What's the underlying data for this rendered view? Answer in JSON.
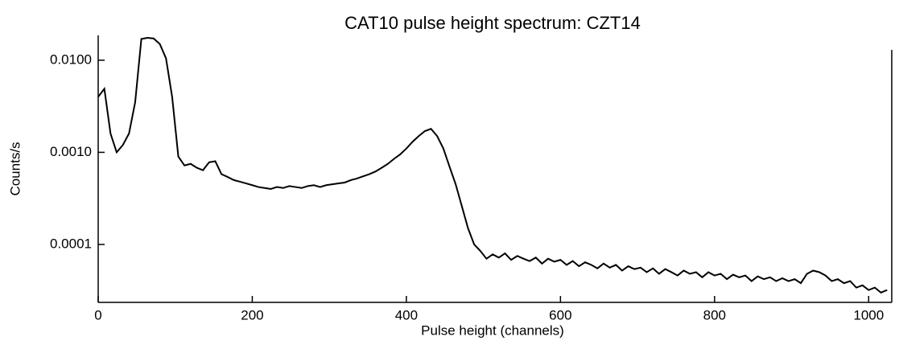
{
  "chart_data": {
    "type": "line",
    "title": "CAT10 pulse height spectrum: CZT14",
    "xlabel": "Pulse height (channels)",
    "ylabel": "Counts/s",
    "log_y": true,
    "grid": false,
    "xlim": [
      0,
      1030
    ],
    "xticks": [
      0,
      200,
      400,
      600,
      800,
      1000
    ],
    "ylim": [
      2.35e-05,
      0.0186
    ],
    "yticks": [
      {
        "value": 0.0001,
        "label": "0.0001"
      },
      {
        "value": 0.001,
        "label": "0.0010"
      },
      {
        "value": 0.01,
        "label": "0.0100"
      }
    ],
    "x": [
      0,
      8,
      16,
      24,
      32,
      40,
      48,
      56,
      64,
      72,
      80,
      88,
      96,
      104,
      112,
      120,
      128,
      136,
      144,
      152,
      160,
      168,
      176,
      184,
      192,
      200,
      208,
      216,
      224,
      232,
      240,
      248,
      256,
      264,
      272,
      280,
      288,
      296,
      304,
      312,
      320,
      328,
      336,
      344,
      352,
      360,
      368,
      376,
      384,
      392,
      400,
      408,
      416,
      424,
      432,
      440,
      448,
      456,
      464,
      472,
      480,
      488,
      496,
      504,
      512,
      520,
      528,
      536,
      544,
      552,
      560,
      568,
      576,
      584,
      592,
      600,
      608,
      616,
      624,
      632,
      640,
      648,
      656,
      664,
      672,
      680,
      688,
      696,
      704,
      712,
      720,
      728,
      736,
      744,
      752,
      760,
      768,
      776,
      784,
      792,
      800,
      808,
      816,
      824,
      832,
      840,
      848,
      856,
      864,
      872,
      880,
      888,
      896,
      904,
      912,
      920,
      928,
      936,
      944,
      952,
      960,
      968,
      976,
      984,
      992,
      1000,
      1008,
      1016,
      1024
    ],
    "series": [
      {
        "color": "#000000",
        "values": [
          0.004,
          0.0049,
          0.0016,
          0.001,
          0.0012,
          0.0016,
          0.0035,
          0.017,
          0.0175,
          0.0172,
          0.015,
          0.0105,
          0.004,
          0.0009,
          0.00072,
          0.00075,
          0.00068,
          0.00064,
          0.00078,
          0.0008,
          0.00058,
          0.00054,
          0.0005,
          0.00048,
          0.00046,
          0.00044,
          0.00042,
          0.00041,
          0.0004,
          0.00042,
          0.00041,
          0.00043,
          0.00042,
          0.00041,
          0.00043,
          0.00044,
          0.00042,
          0.00044,
          0.00045,
          0.00046,
          0.00047,
          0.0005,
          0.00052,
          0.00055,
          0.00058,
          0.00062,
          0.00068,
          0.00075,
          0.00085,
          0.00095,
          0.0011,
          0.0013,
          0.0015,
          0.0017,
          0.0018,
          0.0015,
          0.0011,
          0.0007,
          0.00045,
          0.00026,
          0.00015,
          0.0001,
          8.5e-05,
          7e-05,
          7.8e-05,
          7.2e-05,
          8e-05,
          6.8e-05,
          7.5e-05,
          7e-05,
          6.6e-05,
          7.2e-05,
          6.2e-05,
          7e-05,
          6.5e-05,
          6.8e-05,
          6e-05,
          6.6e-05,
          5.8e-05,
          6.4e-05,
          6e-05,
          5.5e-05,
          6.2e-05,
          5.6e-05,
          6e-05,
          5.2e-05,
          5.8e-05,
          5.4e-05,
          5.6e-05,
          5e-05,
          5.5e-05,
          4.8e-05,
          5.4e-05,
          5e-05,
          4.6e-05,
          5.2e-05,
          4.8e-05,
          5e-05,
          4.4e-05,
          5e-05,
          4.6e-05,
          4.8e-05,
          4.2e-05,
          4.7e-05,
          4.4e-05,
          4.6e-05,
          4e-05,
          4.5e-05,
          4.2e-05,
          4.4e-05,
          4e-05,
          4.3e-05,
          4e-05,
          4.2e-05,
          3.8e-05,
          4.8e-05,
          5.2e-05,
          5e-05,
          4.6e-05,
          4e-05,
          4.2e-05,
          3.8e-05,
          4e-05,
          3.4e-05,
          3.6e-05,
          3.2e-05,
          3.4e-05,
          3e-05,
          3.2e-05
        ]
      }
    ]
  }
}
